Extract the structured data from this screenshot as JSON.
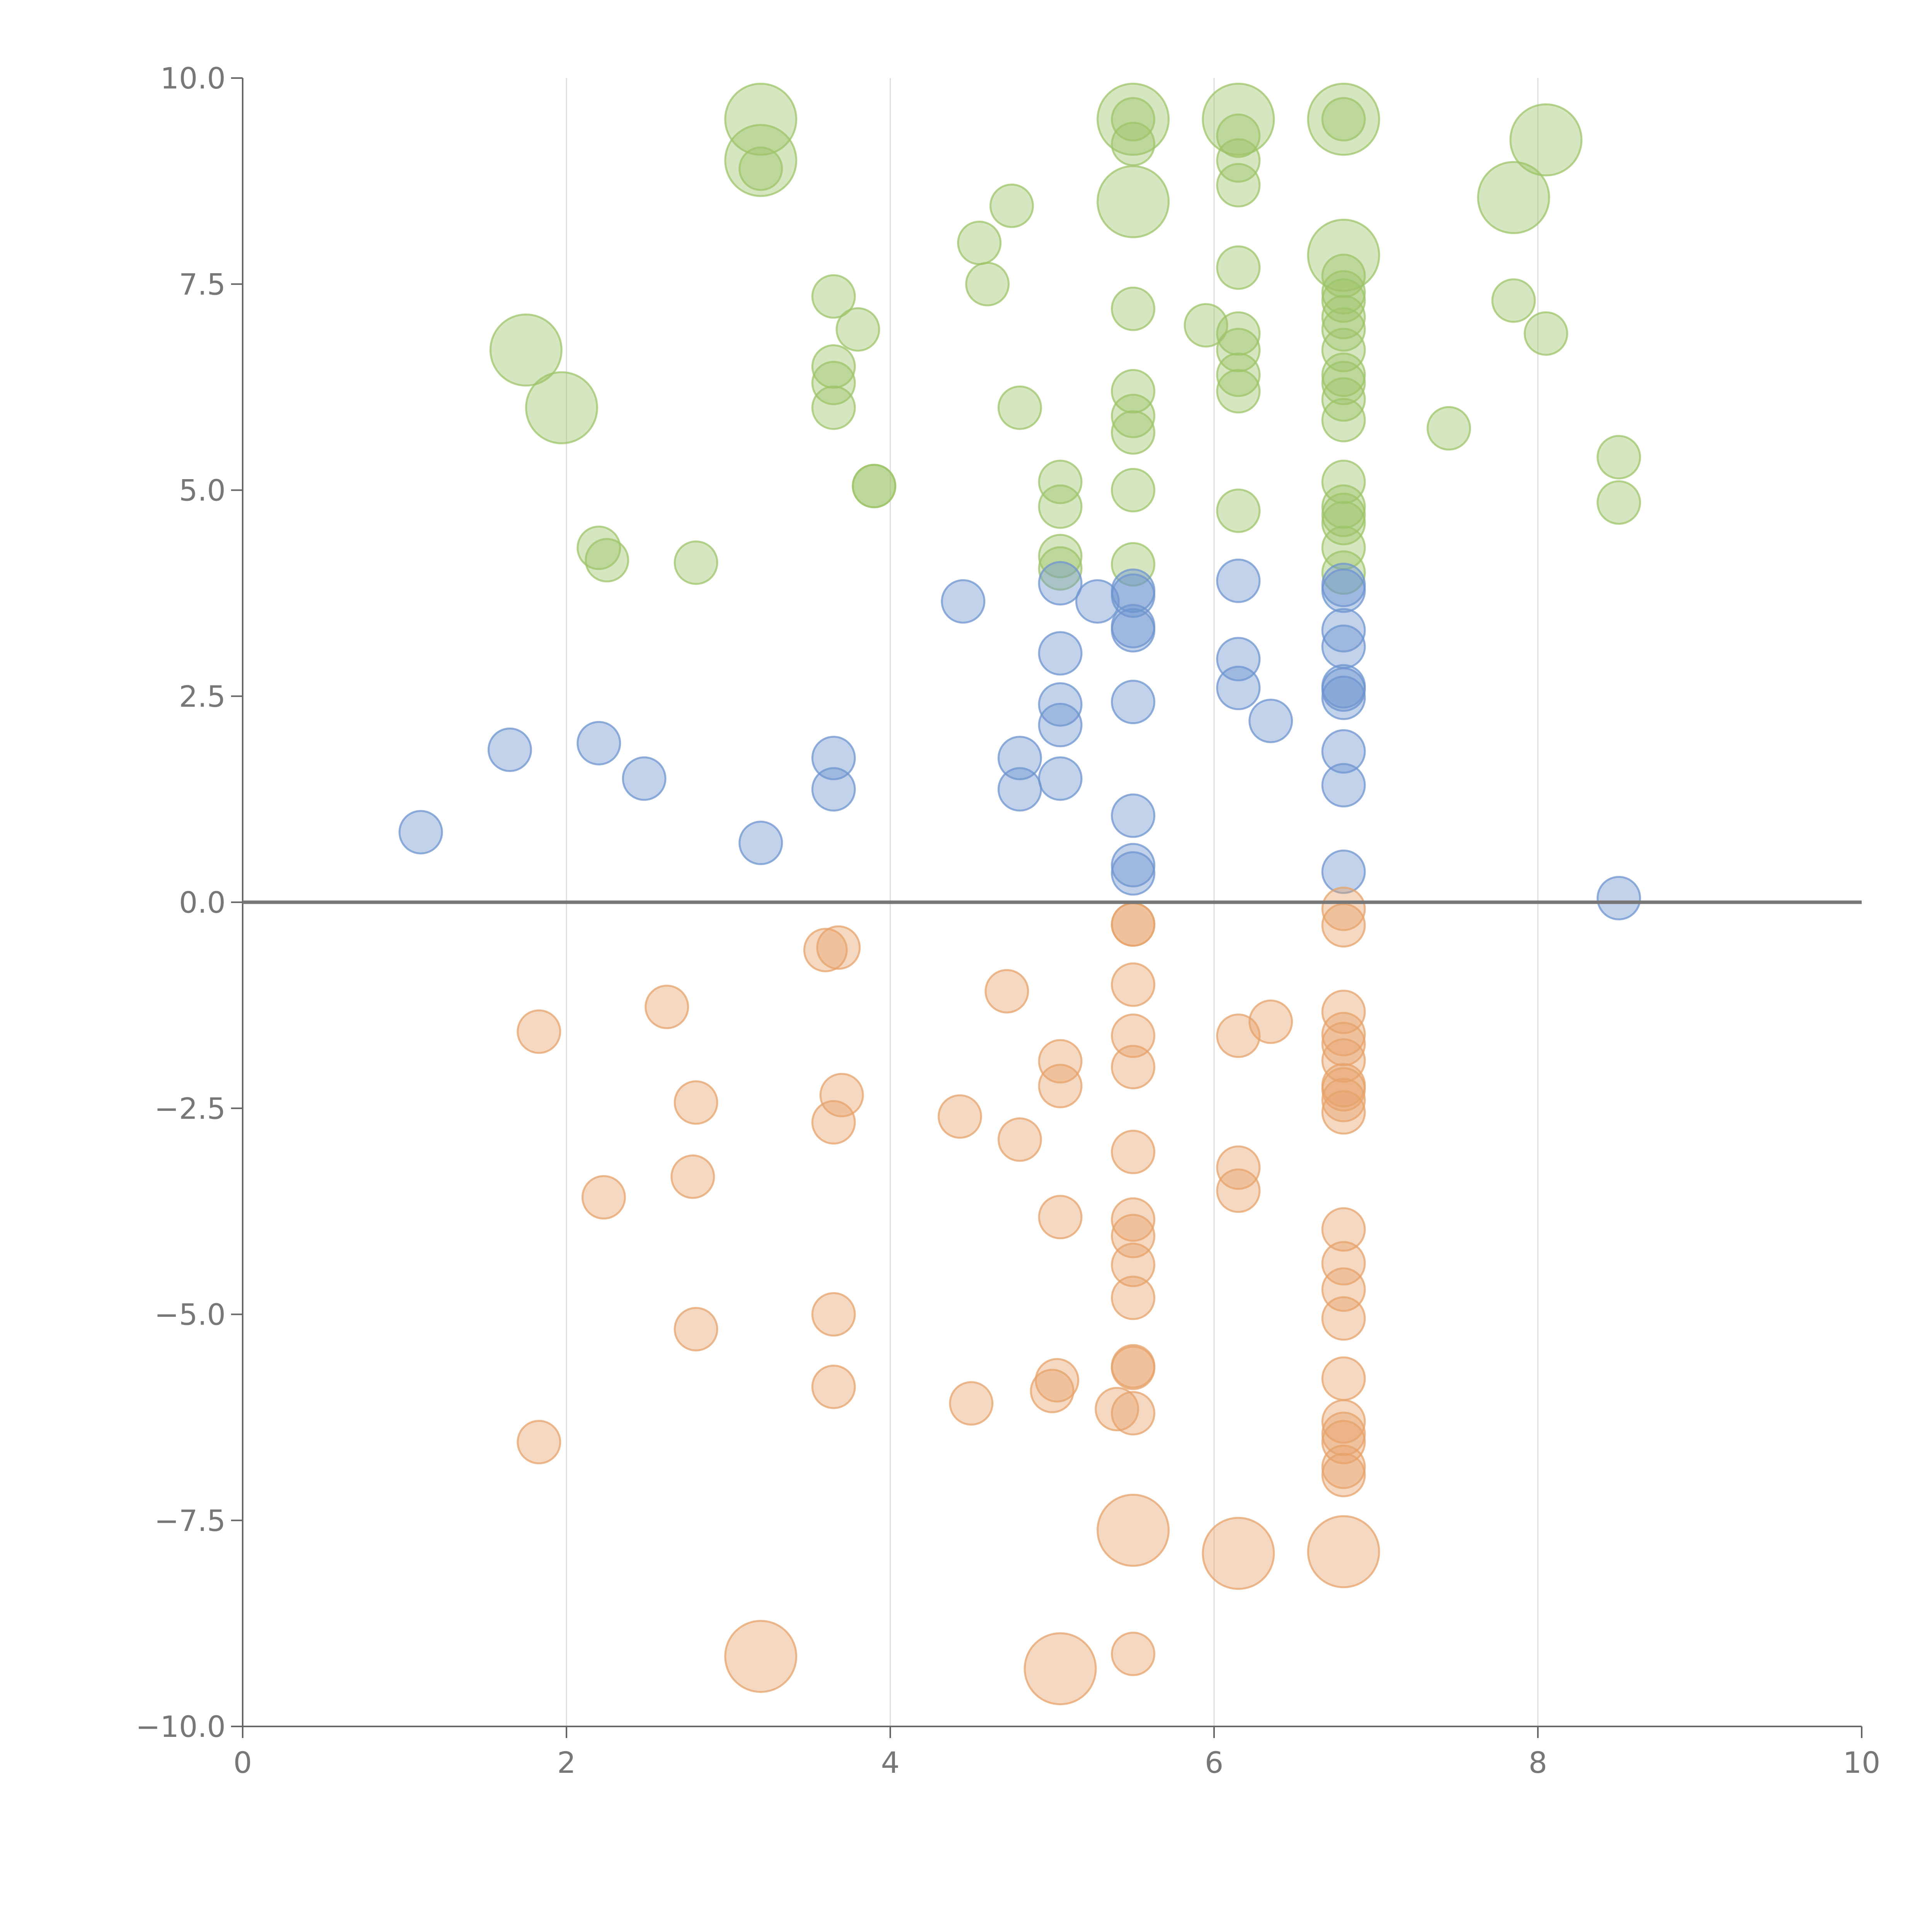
{
  "chart_data": {
    "type": "scatter",
    "subtype": "bubble",
    "title": "",
    "xlabel": "",
    "ylabel": "",
    "xlim": [
      0,
      10
    ],
    "ylim": [
      -10,
      10
    ],
    "grid": "vertical",
    "zero_line": true,
    "x_ticks": [
      0,
      2,
      4,
      6,
      8,
      10
    ],
    "x_tick_labels": [
      "0",
      "2",
      "4",
      "6",
      "8",
      "10"
    ],
    "y_ticks": [
      10,
      7.5,
      5,
      2.5,
      0,
      -2.5,
      -5,
      -7.5,
      -10
    ],
    "y_tick_labels": [
      "10.0",
      "7.5",
      "5.0",
      "2.5",
      "0.0",
      "−2.5",
      "−5.0",
      "−7.5",
      "−10.0"
    ],
    "colors": {
      "green": "#9dc46a",
      "blue": "#6d94cf",
      "orange": "#e6a36b"
    },
    "series": [
      {
        "name": "green",
        "color": "#9dc46a",
        "points": [
          [
            3.2,
            9.5,
            "L"
          ],
          [
            3.2,
            9.0,
            "L"
          ],
          [
            3.2,
            8.9,
            "s"
          ],
          [
            5.5,
            9.5,
            "L"
          ],
          [
            5.5,
            9.5,
            "s"
          ],
          [
            5.5,
            9.2,
            "s"
          ],
          [
            5.5,
            8.5,
            "L"
          ],
          [
            6.15,
            9.5,
            "L"
          ],
          [
            6.15,
            9.3,
            "s"
          ],
          [
            6.15,
            9.0,
            "s"
          ],
          [
            6.15,
            8.7,
            "s"
          ],
          [
            6.8,
            9.5,
            "L"
          ],
          [
            6.8,
            9.5,
            "s"
          ],
          [
            8.05,
            9.25,
            "L"
          ],
          [
            7.85,
            8.55,
            "L"
          ],
          [
            4.75,
            8.45,
            "s"
          ],
          [
            4.55,
            8.0,
            "s"
          ],
          [
            4.6,
            7.5,
            "s"
          ],
          [
            3.65,
            7.35,
            "s"
          ],
          [
            3.8,
            6.95,
            "s"
          ],
          [
            3.65,
            6.5,
            "s"
          ],
          [
            3.65,
            6.3,
            "s"
          ],
          [
            3.65,
            6.0,
            "s"
          ],
          [
            1.75,
            6.7,
            "L"
          ],
          [
            1.97,
            6.0,
            "L"
          ],
          [
            5.5,
            7.2,
            "s"
          ],
          [
            6.15,
            7.7,
            "s"
          ],
          [
            6.8,
            7.85,
            "L"
          ],
          [
            6.8,
            7.6,
            "s"
          ],
          [
            6.8,
            7.4,
            "s"
          ],
          [
            6.8,
            7.3,
            "s"
          ],
          [
            5.95,
            7.0,
            "s"
          ],
          [
            6.15,
            6.9,
            "s"
          ],
          [
            6.15,
            6.7,
            "s"
          ],
          [
            6.15,
            6.4,
            "s"
          ],
          [
            6.15,
            6.2,
            "s"
          ],
          [
            6.8,
            7.1,
            "s"
          ],
          [
            6.8,
            6.95,
            "s"
          ],
          [
            6.8,
            6.7,
            "s"
          ],
          [
            6.8,
            6.4,
            "s"
          ],
          [
            6.8,
            6.3,
            "s"
          ],
          [
            6.8,
            6.1,
            "s"
          ],
          [
            6.8,
            5.85,
            "s"
          ],
          [
            7.85,
            7.3,
            "s"
          ],
          [
            8.05,
            6.9,
            "s"
          ],
          [
            7.45,
            5.75,
            "s"
          ],
          [
            4.8,
            6.0,
            "s"
          ],
          [
            5.5,
            6.2,
            "s"
          ],
          [
            5.5,
            5.9,
            "s"
          ],
          [
            5.5,
            5.7,
            "s"
          ],
          [
            3.9,
            5.05,
            "s"
          ],
          [
            3.9,
            5.05,
            "s"
          ],
          [
            5.05,
            5.1,
            "s"
          ],
          [
            5.05,
            4.8,
            "s"
          ],
          [
            5.5,
            5.0,
            "s"
          ],
          [
            6.15,
            4.75,
            "s"
          ],
          [
            6.8,
            5.1,
            "s"
          ],
          [
            6.8,
            4.8,
            "s"
          ],
          [
            6.8,
            4.7,
            "s"
          ],
          [
            6.8,
            4.6,
            "s"
          ],
          [
            6.8,
            4.3,
            "s"
          ],
          [
            6.8,
            4.0,
            "s"
          ],
          [
            8.5,
            5.4,
            "s"
          ],
          [
            8.5,
            4.85,
            "s"
          ],
          [
            2.2,
            4.3,
            "s"
          ],
          [
            2.25,
            4.15,
            "s"
          ],
          [
            2.8,
            4.12,
            "s"
          ],
          [
            5.05,
            4.2,
            "s"
          ],
          [
            5.05,
            4.05,
            "s"
          ],
          [
            5.5,
            4.1,
            "s"
          ]
        ]
      },
      {
        "name": "blue",
        "color": "#6d94cf",
        "points": [
          [
            4.45,
            3.65,
            "s"
          ],
          [
            5.05,
            3.87,
            "s"
          ],
          [
            5.28,
            3.65,
            "s"
          ],
          [
            5.5,
            3.78,
            "s"
          ],
          [
            5.5,
            3.72,
            "s"
          ],
          [
            5.5,
            3.35,
            "s"
          ],
          [
            5.5,
            3.3,
            "s"
          ],
          [
            6.15,
            3.9,
            "s"
          ],
          [
            6.8,
            3.85,
            "s"
          ],
          [
            6.8,
            3.78,
            "s"
          ],
          [
            6.8,
            3.3,
            "s"
          ],
          [
            6.8,
            3.1,
            "s"
          ],
          [
            5.05,
            3.02,
            "s"
          ],
          [
            6.15,
            2.95,
            "s"
          ],
          [
            6.8,
            2.62,
            "s"
          ],
          [
            6.8,
            2.58,
            "s"
          ],
          [
            6.8,
            2.48,
            "s"
          ],
          [
            6.15,
            2.6,
            "s"
          ],
          [
            5.05,
            2.4,
            "s"
          ],
          [
            5.05,
            2.15,
            "s"
          ],
          [
            5.5,
            2.43,
            "s"
          ],
          [
            6.35,
            2.2,
            "s"
          ],
          [
            1.65,
            1.85,
            "s"
          ],
          [
            2.2,
            1.93,
            "s"
          ],
          [
            2.48,
            1.5,
            "s"
          ],
          [
            3.65,
            1.75,
            "s"
          ],
          [
            3.65,
            1.37,
            "s"
          ],
          [
            4.8,
            1.75,
            "s"
          ],
          [
            4.8,
            1.37,
            "s"
          ],
          [
            5.05,
            1.5,
            "s"
          ],
          [
            6.8,
            1.83,
            "s"
          ],
          [
            6.8,
            1.42,
            "s"
          ],
          [
            1.1,
            0.85,
            "s"
          ],
          [
            3.2,
            0.72,
            "s"
          ],
          [
            5.5,
            1.05,
            "s"
          ],
          [
            5.5,
            0.45,
            "s"
          ],
          [
            5.5,
            0.35,
            "s"
          ],
          [
            6.8,
            0.37,
            "s"
          ],
          [
            8.5,
            0.05,
            "s"
          ]
        ]
      },
      {
        "name": "orange",
        "color": "#e6a36b",
        "points": [
          [
            5.5,
            -0.27,
            "s"
          ],
          [
            5.5,
            -0.27,
            "s"
          ],
          [
            6.8,
            -0.08,
            "s"
          ],
          [
            6.8,
            -0.28,
            "s"
          ],
          [
            3.6,
            -0.58,
            "s"
          ],
          [
            3.68,
            -0.55,
            "s"
          ],
          [
            4.72,
            -1.08,
            "s"
          ],
          [
            2.62,
            -1.27,
            "s"
          ],
          [
            1.83,
            -1.57,
            "s"
          ],
          [
            5.5,
            -1.0,
            "s"
          ],
          [
            5.5,
            -1.62,
            "s"
          ],
          [
            5.5,
            -2.0,
            "s"
          ],
          [
            6.15,
            -1.62,
            "s"
          ],
          [
            6.35,
            -1.45,
            "s"
          ],
          [
            6.8,
            -1.33,
            "s"
          ],
          [
            6.8,
            -1.6,
            "s"
          ],
          [
            6.8,
            -1.72,
            "s"
          ],
          [
            6.8,
            -1.92,
            "s"
          ],
          [
            6.8,
            -2.22,
            "s"
          ],
          [
            6.8,
            -2.27,
            "s"
          ],
          [
            6.8,
            -2.4,
            "s"
          ],
          [
            6.8,
            -2.55,
            "s"
          ],
          [
            5.05,
            -1.93,
            "s"
          ],
          [
            5.05,
            -2.23,
            "s"
          ],
          [
            2.8,
            -2.43,
            "s"
          ],
          [
            3.7,
            -2.34,
            "s"
          ],
          [
            3.65,
            -2.67,
            "s"
          ],
          [
            4.43,
            -2.6,
            "s"
          ],
          [
            4.8,
            -2.88,
            "s"
          ],
          [
            5.5,
            -3.03,
            "s"
          ],
          [
            6.15,
            -3.22,
            "s"
          ],
          [
            6.15,
            -3.5,
            "s"
          ],
          [
            2.78,
            -3.33,
            "s"
          ],
          [
            2.23,
            -3.58,
            "s"
          ],
          [
            5.05,
            -3.82,
            "s"
          ],
          [
            5.5,
            -3.85,
            "s"
          ],
          [
            5.5,
            -4.05,
            "s"
          ],
          [
            5.5,
            -4.4,
            "s"
          ],
          [
            5.5,
            -4.8,
            "s"
          ],
          [
            6.8,
            -3.97,
            "s"
          ],
          [
            6.8,
            -4.38,
            "s"
          ],
          [
            6.8,
            -4.7,
            "s"
          ],
          [
            6.8,
            -5.05,
            "s"
          ],
          [
            3.65,
            -5.0,
            "s"
          ],
          [
            2.8,
            -5.18,
            "s"
          ],
          [
            3.65,
            -5.88,
            "s"
          ],
          [
            4.5,
            -6.08,
            "s"
          ],
          [
            5.03,
            -5.8,
            "s"
          ],
          [
            5.0,
            -5.93,
            "s"
          ],
          [
            5.4,
            -6.15,
            "s"
          ],
          [
            5.5,
            -6.2,
            "s"
          ],
          [
            5.5,
            -5.63,
            "s"
          ],
          [
            5.5,
            -5.65,
            "s"
          ],
          [
            6.8,
            -5.78,
            "s"
          ],
          [
            6.8,
            -6.3,
            "s"
          ],
          [
            6.8,
            -6.45,
            "s"
          ],
          [
            6.8,
            -6.55,
            "s"
          ],
          [
            6.8,
            -6.85,
            "s"
          ],
          [
            6.8,
            -6.95,
            "s"
          ],
          [
            1.83,
            -6.55,
            "s"
          ],
          [
            5.5,
            -7.62,
            "L"
          ],
          [
            6.15,
            -7.9,
            "L"
          ],
          [
            6.8,
            -7.88,
            "L"
          ],
          [
            3.2,
            -9.15,
            "L"
          ],
          [
            5.05,
            -9.3,
            "L"
          ],
          [
            5.5,
            -9.12,
            "s"
          ]
        ]
      }
    ]
  }
}
